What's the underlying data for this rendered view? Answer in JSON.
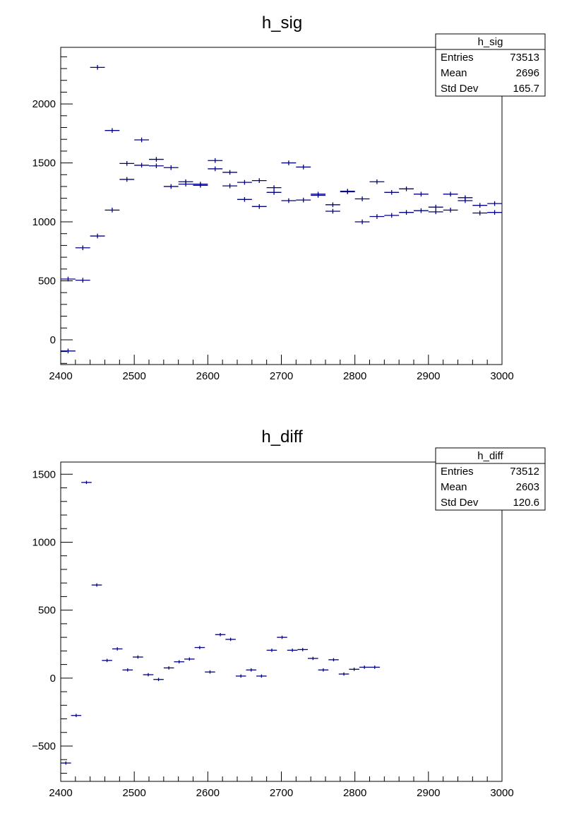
{
  "colors": {
    "marker": "#000080",
    "axis": "#000000",
    "background": "#ffffff"
  },
  "chart_data": [
    {
      "type": "scatter",
      "title": "h_sig",
      "xlim": [
        2400,
        3000
      ],
      "ylim": [
        -210,
        2480
      ],
      "xticks": [
        2400,
        2500,
        2600,
        2700,
        2800,
        2900,
        3000
      ],
      "yticks": [
        0,
        500,
        1000,
        1500,
        2000
      ],
      "xtick_labels": [
        "2400",
        "2500",
        "2600",
        "2700",
        "2800",
        "2900",
        "3000"
      ],
      "ytick_labels": [
        "0",
        "500",
        "1000",
        "1500",
        "2000"
      ],
      "bin_width": 20,
      "error_bar": 20,
      "stats": {
        "name": "h_sig",
        "rows": [
          {
            "label": "Entries",
            "value": "73513"
          },
          {
            "label": "Mean",
            "value": "2696"
          },
          {
            "label": "Std Dev",
            "value": "165.7"
          }
        ]
      },
      "series": [
        {
          "x": [
            2410,
            2430,
            2450,
            2470,
            2490,
            2510,
            2530,
            2550,
            2570,
            2590,
            2610,
            2630,
            2650,
            2670,
            2690,
            2710,
            2730,
            2750,
            2770,
            2790,
            2810,
            2830,
            2850,
            2870,
            2890,
            2910,
            2930,
            2950,
            2970,
            2990
          ],
          "y": [
            515,
            780,
            2310,
            1775,
            1495,
            1695,
            1530,
            1460,
            1340,
            1320,
            1520,
            1420,
            1335,
            1350,
            1290,
            1500,
            1465,
            1235,
            1145,
            1260,
            1195,
            1340,
            1250,
            1280,
            1235,
            1125,
            1235,
            1205,
            1140,
            1155
          ]
        },
        {
          "x": [
            2410,
            2430,
            2450,
            2470,
            2490,
            2510,
            2530,
            2550,
            2570,
            2590,
            2610,
            2630,
            2650,
            2670,
            2690,
            2710,
            2730,
            2750,
            2770,
            2790,
            2810,
            2830,
            2850,
            2870,
            2890,
            2910,
            2930,
            2950,
            2970,
            2990
          ],
          "y": [
            -95,
            505,
            880,
            1100,
            1360,
            1480,
            1475,
            1300,
            1320,
            1310,
            1450,
            1305,
            1190,
            1130,
            1250,
            1180,
            1185,
            1225,
            1090,
            1255,
            1000,
            1045,
            1055,
            1080,
            1095,
            1085,
            1100,
            1180,
            1075,
            1080
          ]
        }
      ]
    },
    {
      "type": "scatter",
      "title": "h_diff",
      "xlim": [
        2400,
        3000
      ],
      "ylim": [
        -760,
        1590
      ],
      "xticks": [
        2400,
        2500,
        2600,
        2700,
        2800,
        2900,
        3000
      ],
      "yticks": [
        -500,
        0,
        500,
        1000,
        1500
      ],
      "xtick_labels": [
        "2400",
        "2500",
        "2600",
        "2700",
        "2800",
        "2900",
        "3000"
      ],
      "ytick_labels": [
        "−500",
        "0",
        "500",
        "1000",
        "1500"
      ],
      "bin_width": 14,
      "error_bar": 12,
      "stats": {
        "name": "h_diff",
        "rows": [
          {
            "label": "Entries",
            "value": "73512"
          },
          {
            "label": "Mean",
            "value": "2603"
          },
          {
            "label": "Std Dev",
            "value": "120.6"
          }
        ]
      },
      "series": [
        {
          "x": [
            2407,
            2421,
            2435,
            2449,
            2463,
            2477,
            2491,
            2505,
            2519,
            2533,
            2547,
            2561,
            2575,
            2589,
            2603,
            2617,
            2631,
            2645,
            2659,
            2673,
            2687,
            2701,
            2715,
            2729,
            2743,
            2757,
            2771,
            2785,
            2799,
            2813,
            2827
          ],
          "y": [
            -625,
            -275,
            1440,
            685,
            130,
            215,
            60,
            155,
            25,
            -10,
            75,
            120,
            140,
            225,
            45,
            320,
            285,
            15,
            60,
            15,
            205,
            300,
            205,
            210,
            145,
            60,
            135,
            30,
            65,
            80,
            80
          ]
        }
      ]
    }
  ]
}
